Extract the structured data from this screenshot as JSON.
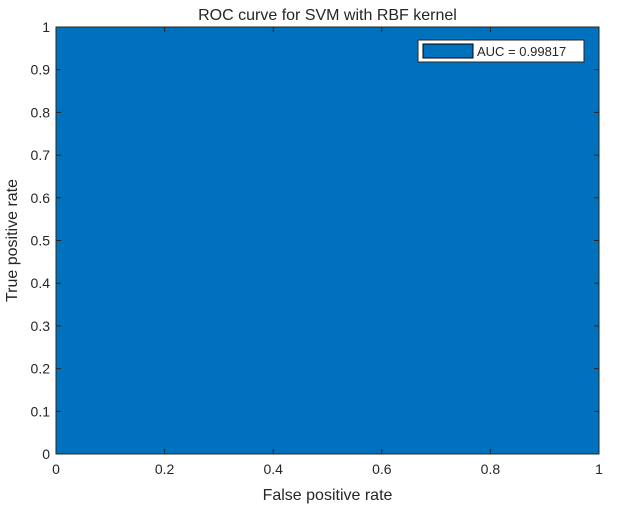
{
  "chart_data": {
    "type": "area",
    "title": "ROC curve for SVM with RBF kernel",
    "xlabel": "False positive rate",
    "ylabel": "True positive rate",
    "xlim": [
      0,
      1
    ],
    "ylim": [
      0,
      1
    ],
    "xticks": [
      "0",
      "0.2",
      "0.4",
      "0.6",
      "0.8",
      "1"
    ],
    "yticks": [
      "0",
      "0.1",
      "0.2",
      "0.3",
      "0.4",
      "0.5",
      "0.6",
      "0.7",
      "0.8",
      "0.9",
      "1"
    ],
    "grid": false,
    "legend": {
      "position": "top-right",
      "entries": [
        "AUC = 0.99817"
      ]
    },
    "series": [
      {
        "name": "AUC = 0.99817",
        "color": "#0072BD",
        "x": [
          0,
          0,
          0,
          1
        ],
        "y": [
          0,
          0.93,
          1,
          1
        ]
      }
    ]
  }
}
